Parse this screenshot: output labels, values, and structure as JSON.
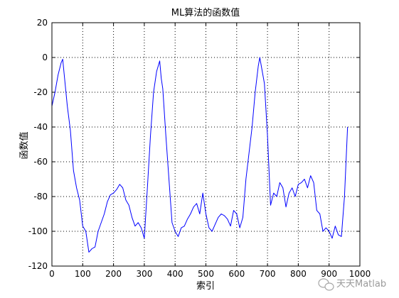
{
  "chart_data": {
    "type": "line",
    "title": "ML算法的函数值",
    "xlabel": "索引",
    "ylabel": "函数值",
    "xlim": [
      0,
      1000
    ],
    "ylim": [
      -120,
      20
    ],
    "xticks": [
      "0",
      "100",
      "200",
      "300",
      "400",
      "500",
      "600",
      "700",
      "800",
      "900",
      "1000"
    ],
    "yticks": [
      "20",
      "0",
      "-20",
      "-40",
      "-60",
      "-80",
      "-100",
      "-120"
    ],
    "grid": true,
    "series_color": "#0000ff",
    "series": [
      {
        "x": [
          0,
          10,
          20,
          30,
          35,
          40,
          50,
          60,
          70,
          80,
          90,
          100,
          110,
          120,
          130,
          140,
          150,
          160,
          170,
          180,
          190,
          200,
          210,
          220,
          230,
          240,
          250,
          260,
          270,
          280,
          290,
          300,
          310,
          320,
          330,
          340,
          350,
          355,
          360,
          370,
          380,
          390,
          400,
          410,
          420,
          430,
          440,
          450,
          460,
          470,
          480,
          490,
          500,
          510,
          520,
          530,
          540,
          550,
          560,
          570,
          580,
          590,
          600,
          610,
          620,
          630,
          640,
          650,
          660,
          670,
          675,
          680,
          690,
          700,
          710,
          720,
          730,
          740,
          750,
          760,
          770,
          780,
          790,
          800,
          810,
          820,
          830,
          840,
          850,
          860,
          870,
          880,
          890,
          900,
          910,
          920,
          930,
          940,
          950,
          960
        ],
        "values": [
          -28,
          -20,
          -10,
          -3,
          -1,
          -10,
          -28,
          -42,
          -65,
          -75,
          -82,
          -97,
          -100,
          -112,
          -110,
          -109,
          -100,
          -95,
          -90,
          -83,
          -79,
          -78,
          -76,
          -73,
          -75,
          -82,
          -85,
          -92,
          -97,
          -95,
          -98,
          -104,
          -75,
          -45,
          -20,
          -8,
          -2,
          -12,
          -18,
          -45,
          -70,
          -95,
          -100,
          -103,
          -98,
          -97,
          -93,
          -90,
          -86,
          -84,
          -90,
          -78,
          -90,
          -98,
          -100,
          -96,
          -92,
          -90,
          -91,
          -93,
          -97,
          -88,
          -90,
          -98,
          -92,
          -70,
          -55,
          -40,
          -20,
          -5,
          0,
          -5,
          -15,
          -45,
          -85,
          -78,
          -80,
          -72,
          -75,
          -86,
          -78,
          -75,
          -80,
          -73,
          -72,
          -70,
          -75,
          -68,
          -72,
          -88,
          -90,
          -100,
          -98,
          -100,
          -104,
          -97,
          -102,
          -103,
          -80,
          -40
        ]
      }
    ],
    "watermark": "天天Matlab"
  }
}
